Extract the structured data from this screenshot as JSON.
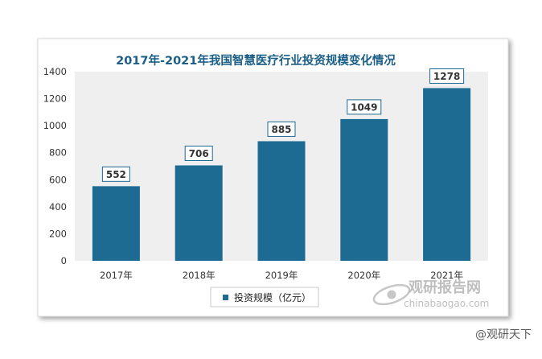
{
  "chart_data": {
    "type": "bar",
    "title": "2017年-2021年我国智慧医疗行业投资规模变化情况",
    "categories": [
      "2017年",
      "2018年",
      "2019年",
      "2020年",
      "2021年"
    ],
    "series": [
      {
        "name": "投资规模（亿元）",
        "values": [
          552,
          706,
          885,
          1049,
          1278
        ]
      }
    ],
    "ylim": [
      0,
      1400
    ],
    "yticks": [
      0,
      200,
      400,
      600,
      800,
      1000,
      1200,
      1400
    ],
    "xlabel": "",
    "ylabel": "",
    "grid": false,
    "legend_position": "bottom",
    "data_labels": true
  },
  "colors": {
    "bar": "#1d6a92",
    "title": "#1b5f86",
    "plot_background": "#efefef",
    "label_border": "#1d6a92",
    "axis_text": "#333333"
  },
  "watermark": {
    "brand_cn": "观研报告网",
    "brand_url": "chinabaogao.com",
    "corner_text": "@观研天下"
  }
}
